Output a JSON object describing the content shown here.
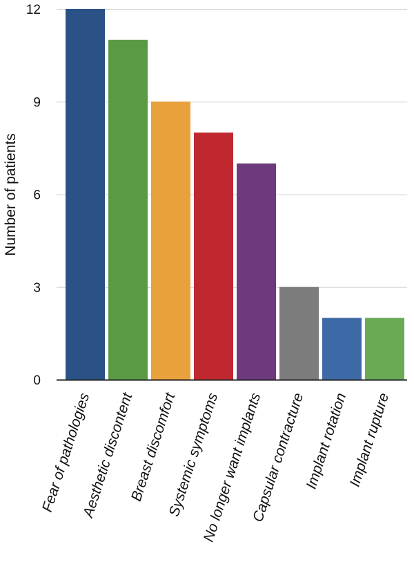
{
  "chart_data": {
    "type": "bar",
    "title": "",
    "xlabel": "",
    "ylabel": "Number of patients",
    "ylim": [
      0,
      12
    ],
    "yticks": [
      0,
      3,
      6,
      9,
      12
    ],
    "grid": true,
    "legend": "none",
    "categories": [
      "Fear of pathologies",
      "Aesthetic discontent",
      "Breast discomfort",
      "Systemic symptoms",
      "No longer want implants",
      "Capsular contracture",
      "Implant rotation",
      "Implant rupture"
    ],
    "values": [
      12,
      11,
      9,
      8,
      7,
      3,
      2,
      2
    ],
    "colors": [
      "#2b5287",
      "#5b9a45",
      "#e9a23b",
      "#c0282f",
      "#6d3a7e",
      "#7b7c7b",
      "#3d6aa6",
      "#6aaa57"
    ]
  }
}
